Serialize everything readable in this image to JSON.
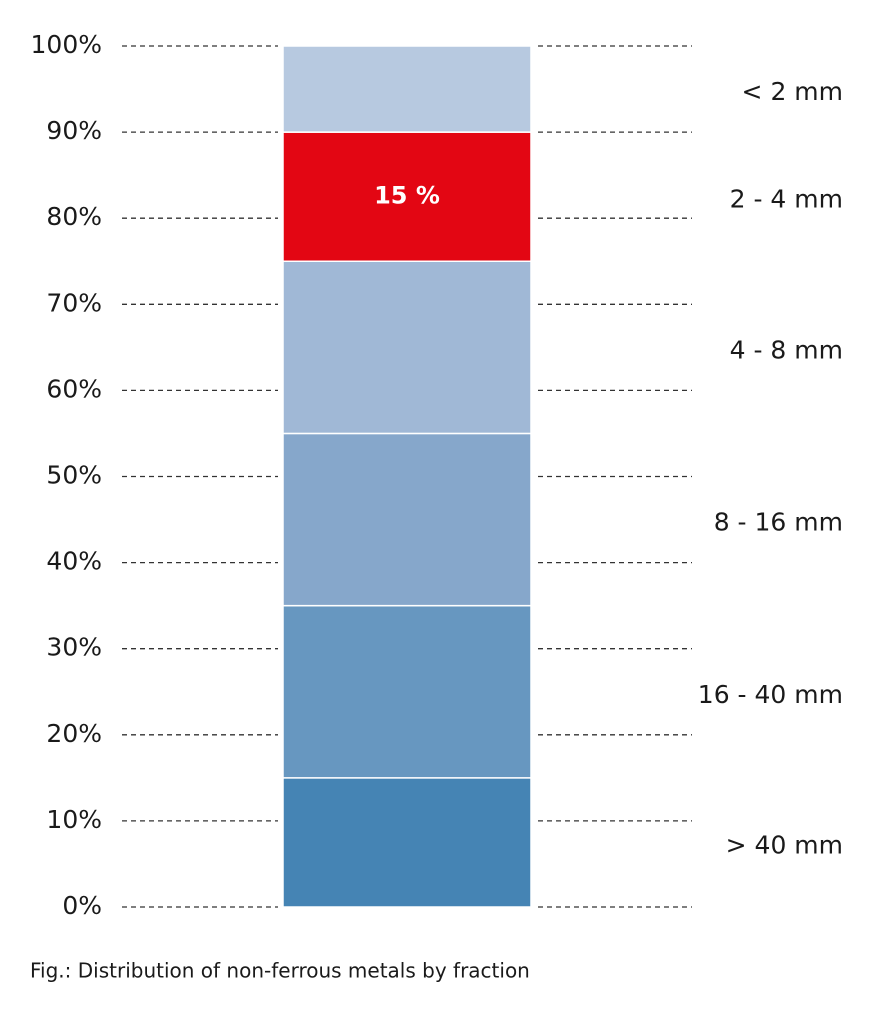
{
  "chart_data": {
    "type": "stacked-bar",
    "caption": "Fig.: Distribution of non-ferrous metals by fraction",
    "categories": [
      null
    ],
    "series": [
      {
        "name": "> 40 mm",
        "color": "#4584b4",
        "values": [
          15
        ]
      },
      {
        "name": "16 - 40 mm",
        "color": "#6797c0",
        "values": [
          20
        ]
      },
      {
        "name": "8 - 16 mm",
        "color": "#86a7cb",
        "values": [
          20
        ]
      },
      {
        "name": "4 - 8 mm",
        "color": "#a0b8d6",
        "values": [
          20
        ]
      },
      {
        "name": "2 - 4 mm",
        "color": "#e30613",
        "values": [
          15
        ],
        "value_labels": [
          "15 %"
        ]
      },
      {
        "name": "< 2 mm",
        "color": "#b7c9e0",
        "values": [
          10
        ]
      }
    ],
    "ylim": [
      0,
      100
    ],
    "yticks": [
      {
        "value": 0,
        "label": "0%"
      },
      {
        "value": 10,
        "label": "10%"
      },
      {
        "value": 20,
        "label": "20%"
      },
      {
        "value": 30,
        "label": "30%"
      },
      {
        "value": 40,
        "label": "40%"
      },
      {
        "value": 50,
        "label": "50%"
      },
      {
        "value": 60,
        "label": "60%"
      },
      {
        "value": 70,
        "label": "70%"
      },
      {
        "value": 80,
        "label": "80%"
      },
      {
        "value": 90,
        "label": "90%"
      },
      {
        "value": 100,
        "label": "100%"
      }
    ],
    "grid": true,
    "legend": "right"
  }
}
